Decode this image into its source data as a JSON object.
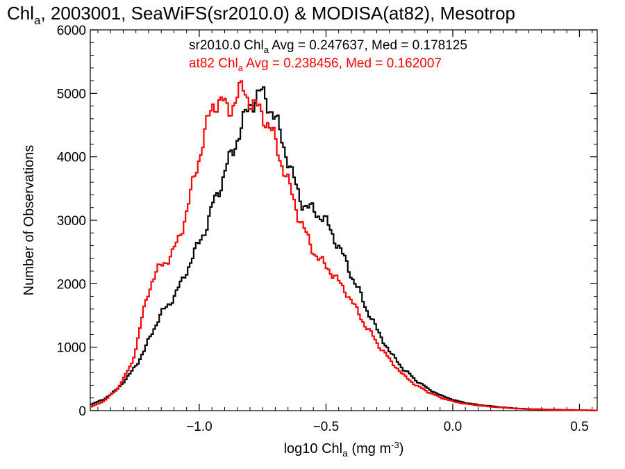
{
  "chart_data": {
    "type": "line",
    "title": "Chl",
    "title_sub": "a",
    "title_rest": ", 2003001, SeaWiFS(sr2010.0) & MODISA(at82), Mesotrop",
    "xlabel_pre": "log10 Chl",
    "xlabel_sub": "a",
    "xlabel_mid": " (mg m",
    "xlabel_sup": "-3",
    "xlabel_post": ")",
    "ylabel": "Number of Observations",
    "xlim": [
      -1.43,
      0.57
    ],
    "ylim": [
      0,
      6000
    ],
    "x_ticks": [
      -1.0,
      -0.5,
      0.0,
      0.5
    ],
    "x_tick_labels": [
      "−1.0",
      "−0.5",
      "0.0",
      "0.5"
    ],
    "y_ticks": [
      0,
      1000,
      2000,
      3000,
      4000,
      5000,
      6000
    ],
    "y_tick_labels": [
      "0",
      "1000",
      "2000",
      "3000",
      "4000",
      "5000",
      "6000"
    ],
    "legend": [
      {
        "pre": "sr2010.0 Chl",
        "sub": "a",
        "post": " Avg = 0.247637, Med = 0.178125",
        "color": "#000000"
      },
      {
        "pre": "at82 Chl",
        "sub": "a",
        "post": " Avg = 0.238456, Med = 0.162007",
        "color": "#ff0000"
      }
    ],
    "series": [
      {
        "color": "#000000",
        "points": [
          [
            -1.43,
            100
          ],
          [
            -1.38,
            180
          ],
          [
            -1.33,
            330
          ],
          [
            -1.28,
            560
          ],
          [
            -1.25,
            740
          ],
          [
            -1.22,
            950
          ],
          [
            -1.2,
            1150
          ],
          [
            -1.17,
            1400
          ],
          [
            -1.15,
            1550
          ],
          [
            -1.12,
            1700
          ],
          [
            -1.1,
            1820
          ],
          [
            -1.07,
            2050
          ],
          [
            -1.05,
            2250
          ],
          [
            -1.02,
            2500
          ],
          [
            -1.0,
            2700
          ],
          [
            -0.97,
            2950
          ],
          [
            -0.95,
            3250
          ],
          [
            -0.92,
            3550
          ],
          [
            -0.9,
            3800
          ],
          [
            -0.87,
            4100
          ],
          [
            -0.85,
            4350
          ],
          [
            -0.82,
            4650
          ],
          [
            -0.8,
            4850
          ],
          [
            -0.78,
            4950
          ],
          [
            -0.76,
            5000
          ],
          [
            -0.74,
            4900
          ],
          [
            -0.72,
            4750
          ],
          [
            -0.7,
            4550
          ],
          [
            -0.68,
            4300
          ],
          [
            -0.66,
            4050
          ],
          [
            -0.64,
            3750
          ],
          [
            -0.62,
            3500
          ],
          [
            -0.6,
            3300
          ],
          [
            -0.58,
            3200
          ],
          [
            -0.55,
            3150
          ],
          [
            -0.52,
            3050
          ],
          [
            -0.5,
            2950
          ],
          [
            -0.48,
            2800
          ],
          [
            -0.45,
            2550
          ],
          [
            -0.42,
            2300
          ],
          [
            -0.4,
            2100
          ],
          [
            -0.37,
            1850
          ],
          [
            -0.35,
            1650
          ],
          [
            -0.32,
            1420
          ],
          [
            -0.3,
            1250
          ],
          [
            -0.27,
            1050
          ],
          [
            -0.25,
            900
          ],
          [
            -0.22,
            780
          ],
          [
            -0.2,
            650
          ],
          [
            -0.17,
            560
          ],
          [
            -0.15,
            480
          ],
          [
            -0.12,
            400
          ],
          [
            -0.1,
            340
          ],
          [
            -0.07,
            280
          ],
          [
            -0.05,
            235
          ],
          [
            -0.02,
            200
          ],
          [
            0.0,
            165
          ],
          [
            0.05,
            120
          ],
          [
            0.1,
            90
          ],
          [
            0.15,
            70
          ],
          [
            0.2,
            50
          ],
          [
            0.25,
            35
          ],
          [
            0.3,
            25
          ],
          [
            0.4,
            15
          ],
          [
            0.5,
            8
          ],
          [
            0.57,
            3
          ]
        ]
      },
      {
        "color": "#ff0000",
        "points": [
          [
            -1.43,
            60
          ],
          [
            -1.38,
            150
          ],
          [
            -1.33,
            330
          ],
          [
            -1.3,
            520
          ],
          [
            -1.27,
            750
          ],
          [
            -1.25,
            1050
          ],
          [
            -1.23,
            1450
          ],
          [
            -1.21,
            1800
          ],
          [
            -1.19,
            2050
          ],
          [
            -1.17,
            2200
          ],
          [
            -1.15,
            2300
          ],
          [
            -1.13,
            2380
          ],
          [
            -1.11,
            2480
          ],
          [
            -1.09,
            2650
          ],
          [
            -1.07,
            2900
          ],
          [
            -1.05,
            3200
          ],
          [
            -1.03,
            3550
          ],
          [
            -1.01,
            3900
          ],
          [
            -0.99,
            4250
          ],
          [
            -0.97,
            4550
          ],
          [
            -0.95,
            4800
          ],
          [
            -0.93,
            4900
          ],
          [
            -0.91,
            4850
          ],
          [
            -0.89,
            4700
          ],
          [
            -0.87,
            4850
          ],
          [
            -0.85,
            5000
          ],
          [
            -0.83,
            5050
          ],
          [
            -0.81,
            4950
          ],
          [
            -0.79,
            4800
          ],
          [
            -0.77,
            4750
          ],
          [
            -0.75,
            4650
          ],
          [
            -0.73,
            4500
          ],
          [
            -0.71,
            4300
          ],
          [
            -0.69,
            4050
          ],
          [
            -0.67,
            3800
          ],
          [
            -0.65,
            3550
          ],
          [
            -0.63,
            3300
          ],
          [
            -0.61,
            3050
          ],
          [
            -0.59,
            2850
          ],
          [
            -0.57,
            2650
          ],
          [
            -0.55,
            2500
          ],
          [
            -0.53,
            2380
          ],
          [
            -0.51,
            2300
          ],
          [
            -0.49,
            2220
          ],
          [
            -0.47,
            2120
          ],
          [
            -0.45,
            2000
          ],
          [
            -0.42,
            1850
          ],
          [
            -0.4,
            1700
          ],
          [
            -0.37,
            1500
          ],
          [
            -0.35,
            1350
          ],
          [
            -0.32,
            1180
          ],
          [
            -0.3,
            1050
          ],
          [
            -0.27,
            900
          ],
          [
            -0.25,
            780
          ],
          [
            -0.22,
            660
          ],
          [
            -0.2,
            560
          ],
          [
            -0.17,
            470
          ],
          [
            -0.15,
            400
          ],
          [
            -0.12,
            340
          ],
          [
            -0.1,
            290
          ],
          [
            -0.07,
            240
          ],
          [
            -0.05,
            200
          ],
          [
            -0.02,
            170
          ],
          [
            0.0,
            140
          ],
          [
            0.05,
            105
          ],
          [
            0.1,
            80
          ],
          [
            0.15,
            60
          ],
          [
            0.2,
            45
          ],
          [
            0.25,
            32
          ],
          [
            0.3,
            22
          ],
          [
            0.4,
            12
          ],
          [
            0.5,
            6
          ],
          [
            0.57,
            3
          ]
        ]
      }
    ]
  }
}
